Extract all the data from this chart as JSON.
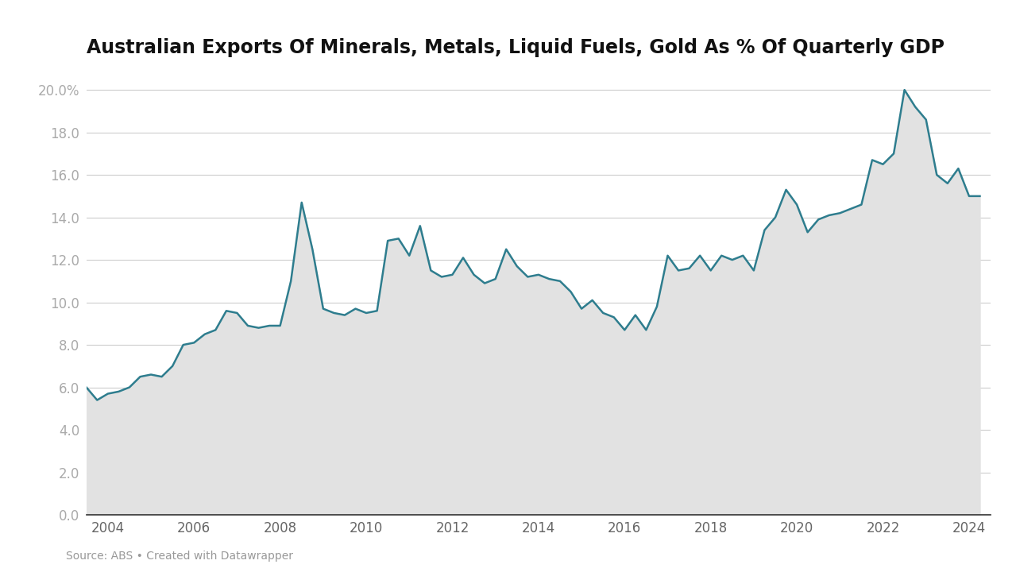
{
  "title": "Australian Exports Of Minerals, Metals, Liquid Fuels, Gold As % Of Quarterly GDP",
  "source_text": "Source: ABS • Created with Datawrapper",
  "background_color": "#ffffff",
  "plot_bg_color": "#ffffff",
  "line_color": "#2e7d8e",
  "fill_color": "#e2e2e2",
  "ylim": [
    0,
    21
  ],
  "yticks": [
    0.0,
    2.0,
    4.0,
    6.0,
    8.0,
    10.0,
    12.0,
    14.0,
    16.0,
    18.0,
    20.0
  ],
  "ytick_labels": [
    "0.0",
    "2.0",
    "4.0",
    "6.0",
    "8.0",
    "10.0",
    "12.0",
    "14.0",
    "16.0",
    "18.0",
    "20.0%"
  ],
  "xticks": [
    2004,
    2006,
    2008,
    2010,
    2012,
    2014,
    2016,
    2018,
    2020,
    2022,
    2024
  ],
  "xlim": [
    2003.5,
    2024.5
  ],
  "years": [
    2003.5,
    2003.75,
    2004.0,
    2004.25,
    2004.5,
    2004.75,
    2005.0,
    2005.25,
    2005.5,
    2005.75,
    2006.0,
    2006.25,
    2006.5,
    2006.75,
    2007.0,
    2007.25,
    2007.5,
    2007.75,
    2008.0,
    2008.25,
    2008.5,
    2008.75,
    2009.0,
    2009.25,
    2009.5,
    2009.75,
    2010.0,
    2010.25,
    2010.5,
    2010.75,
    2011.0,
    2011.25,
    2011.5,
    2011.75,
    2012.0,
    2012.25,
    2012.5,
    2012.75,
    2013.0,
    2013.25,
    2013.5,
    2013.75,
    2014.0,
    2014.25,
    2014.5,
    2014.75,
    2015.0,
    2015.25,
    2015.5,
    2015.75,
    2016.0,
    2016.25,
    2016.5,
    2016.75,
    2017.0,
    2017.25,
    2017.5,
    2017.75,
    2018.0,
    2018.25,
    2018.5,
    2018.75,
    2019.0,
    2019.25,
    2019.5,
    2019.75,
    2020.0,
    2020.25,
    2020.5,
    2020.75,
    2021.0,
    2021.25,
    2021.5,
    2021.75,
    2022.0,
    2022.25,
    2022.5,
    2022.75,
    2023.0,
    2023.25,
    2023.5,
    2023.75,
    2024.0,
    2024.25
  ],
  "values": [
    6.0,
    5.4,
    5.7,
    5.8,
    6.0,
    6.5,
    6.6,
    6.5,
    7.0,
    8.0,
    8.1,
    8.5,
    8.7,
    9.6,
    9.5,
    8.9,
    8.8,
    8.9,
    8.9,
    11.0,
    14.7,
    12.5,
    9.7,
    9.5,
    9.4,
    9.7,
    9.5,
    9.6,
    12.9,
    13.0,
    12.2,
    13.6,
    11.5,
    11.2,
    11.3,
    12.1,
    11.3,
    10.9,
    11.1,
    12.5,
    11.7,
    11.2,
    11.3,
    11.1,
    11.0,
    10.5,
    9.7,
    10.1,
    9.5,
    9.3,
    8.7,
    9.4,
    8.7,
    9.8,
    12.2,
    11.5,
    11.6,
    12.2,
    11.5,
    12.2,
    12.0,
    12.2,
    11.5,
    13.4,
    14.0,
    15.3,
    14.6,
    13.3,
    13.9,
    14.1,
    14.2,
    14.4,
    14.6,
    16.7,
    16.5,
    17.0,
    20.0,
    19.2,
    18.6,
    16.0,
    15.6,
    16.3,
    15.0,
    15.0
  ]
}
